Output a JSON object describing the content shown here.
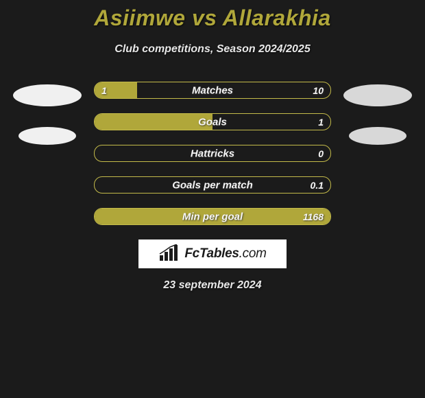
{
  "header": {
    "title": "Asiimwe vs Allarakhia",
    "subtitle": "Club competitions, Season 2024/2025"
  },
  "colors": {
    "background": "#1b1b1b",
    "accent": "#b0a73a",
    "bar_border": "#c4bb4a",
    "text_light": "#e8e8e8",
    "ellipse_left": "#f0f0f0",
    "ellipse_right": "#d8d8d8",
    "logo_bg": "#ffffff"
  },
  "stats": [
    {
      "label": "Matches",
      "left_val": "1",
      "right_val": "10",
      "left_pct": 18,
      "right_pct": 0
    },
    {
      "label": "Goals",
      "left_val": "",
      "right_val": "1",
      "left_pct": 50,
      "right_pct": 0
    },
    {
      "label": "Hattricks",
      "left_val": "",
      "right_val": "0",
      "left_pct": 0,
      "right_pct": 0
    },
    {
      "label": "Goals per match",
      "left_val": "",
      "right_val": "0.1",
      "left_pct": 0,
      "right_pct": 0
    },
    {
      "label": "Min per goal",
      "left_val": "",
      "right_val": "1168",
      "left_pct": 100,
      "right_pct": 0
    }
  ],
  "logo": {
    "text_main": "FcTables",
    "text_suffix": ".com"
  },
  "footer": {
    "date": "23 september 2024"
  }
}
